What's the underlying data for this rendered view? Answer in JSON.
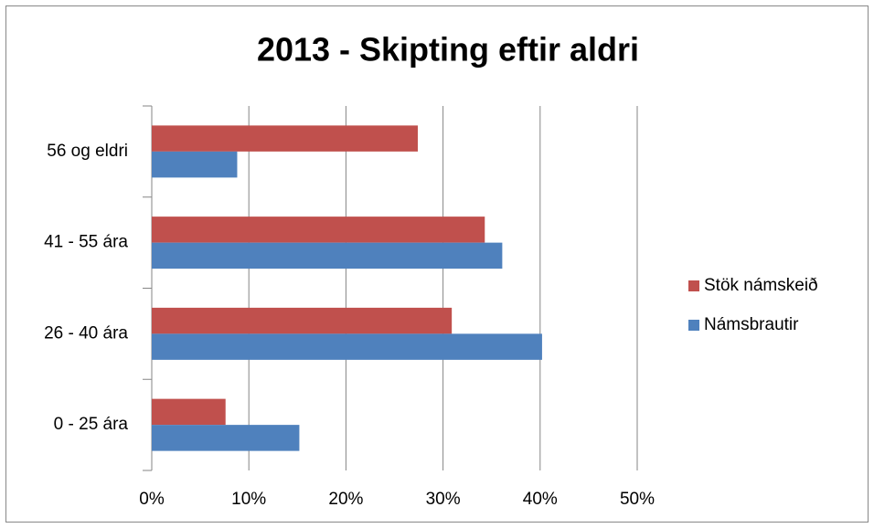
{
  "chart_data": {
    "type": "bar",
    "orientation": "horizontal",
    "title": "2013 - Skipting eftir aldri",
    "categories": [
      "0 - 25 ára",
      "26 - 40 ára",
      "41 - 55 ára",
      "56 og eldri"
    ],
    "series": [
      {
        "name": "Stök námskeið",
        "color": "#c0504d",
        "values": [
          7.6,
          30.9,
          34.3,
          27.4
        ]
      },
      {
        "name": "Námsbrautir",
        "color": "#4f81bd",
        "values": [
          15.2,
          40.2,
          36.1,
          8.8
        ]
      }
    ],
    "xlim": [
      0,
      50
    ],
    "xticks": [
      {
        "value": 0,
        "label": "0%"
      },
      {
        "value": 10,
        "label": "10%"
      },
      {
        "value": 20,
        "label": "20%"
      },
      {
        "value": 30,
        "label": "30%"
      },
      {
        "value": 40,
        "label": "40%"
      },
      {
        "value": 50,
        "label": "50%"
      }
    ],
    "grid": true,
    "legend": "right"
  }
}
